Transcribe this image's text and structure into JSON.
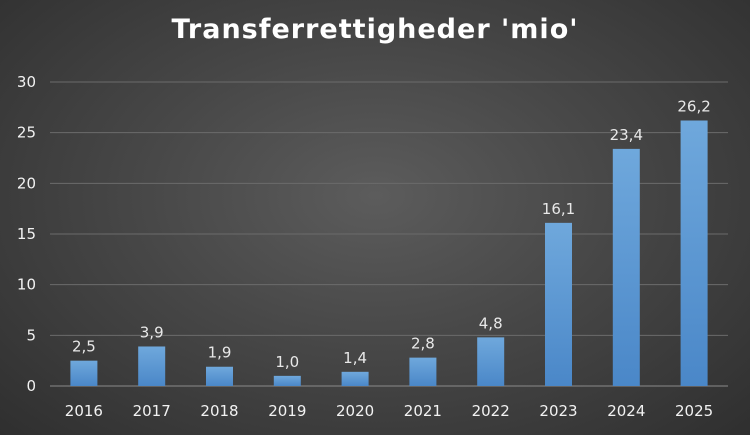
{
  "chart_data": {
    "type": "bar",
    "title": "Transferrettigheder 'mio'",
    "xlabel": "",
    "ylabel": "",
    "categories": [
      "2016",
      "2017",
      "2018",
      "2019",
      "2020",
      "2021",
      "2022",
      "2023",
      "2024",
      "2025"
    ],
    "values": [
      2.5,
      3.9,
      1.9,
      1.0,
      1.4,
      2.8,
      4.8,
      16.1,
      23.4,
      26.2
    ],
    "data_labels": [
      "2,5",
      "3,9",
      "1,9",
      "1,0",
      "1,4",
      "2,8",
      "4,8",
      "16,1",
      "23,4",
      "26,2"
    ],
    "ylim": [
      0,
      30
    ],
    "yticks": [
      "0",
      "5",
      "10",
      "15",
      "20",
      "25",
      "30"
    ],
    "grid": true,
    "legend": "none",
    "colors": {
      "bar_top": "#6fa8dc",
      "bar_bottom": "#4a87c8",
      "gridline": "#6b6b6b",
      "axis": "#8a8a8a",
      "text": "#f2f2f2"
    }
  }
}
